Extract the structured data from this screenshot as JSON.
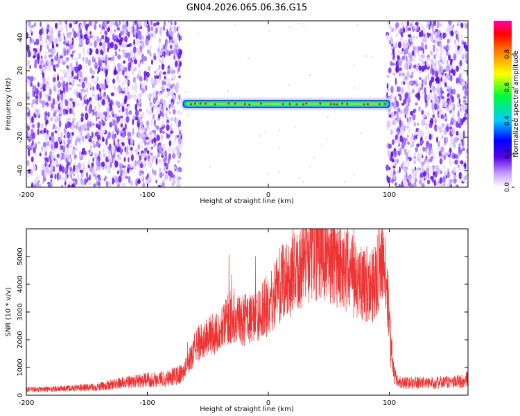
{
  "title": "GN04.2026.065.06.36.G15",
  "chart_data": [
    {
      "type": "heatmap",
      "title": "GN04.2026.065.06.36.G15",
      "xlabel": "Height of straight line (km)",
      "ylabel": "Frequency (Hz)",
      "xlim": [
        -200,
        165
      ],
      "ylim": [
        -50,
        50
      ],
      "x_ticks": [
        "-200",
        "-100",
        "0",
        "100"
      ],
      "y_ticks": [
        "-40",
        "-20",
        "0",
        "20",
        "40"
      ],
      "colorbar": {
        "label": "Normalized spectral amplitude",
        "range": [
          0,
          1
        ],
        "ticks": [
          "0.0",
          "0.2",
          "0.4",
          "0.6",
          "0.8"
        ]
      },
      "noise_regions_km": [
        [
          -200,
          -72
        ],
        [
          98,
          165
        ]
      ],
      "signal_band": {
        "x_start": -72,
        "x_end": 102,
        "frequency_hz": 0,
        "peak_amplitude": 0.95
      }
    },
    {
      "type": "line",
      "xlabel": "Height of straight line (km)",
      "ylabel": "SNR (10 * v/v)",
      "xlim": [
        -200,
        165
      ],
      "ylim": [
        0,
        6000
      ],
      "x_ticks": [
        "-200",
        "-100",
        "0",
        "100"
      ],
      "y_ticks": [
        "0",
        "1000",
        "2000",
        "3000",
        "4000",
        "5000"
      ],
      "color": "#ee3333",
      "series": [
        {
          "x": [
            -200,
            -180,
            -160,
            -140,
            -120,
            -100,
            -85,
            -72,
            -65,
            -60,
            -50,
            -40,
            -30,
            -20,
            -10,
            0,
            10,
            20,
            30,
            40,
            45,
            50,
            60,
            70,
            80,
            88,
            92,
            96,
            98,
            100,
            103,
            106,
            110,
            120,
            140,
            160,
            165
          ],
          "y": [
            200,
            220,
            250,
            300,
            450,
            550,
            600,
            750,
            1200,
            1800,
            2100,
            2300,
            2900,
            2700,
            2800,
            3300,
            4000,
            4300,
            4800,
            5200,
            5400,
            5000,
            4600,
            4300,
            4000,
            4000,
            4700,
            4800,
            4000,
            2500,
            900,
            500,
            450,
            450,
            450,
            500,
            600
          ]
        }
      ]
    }
  ]
}
